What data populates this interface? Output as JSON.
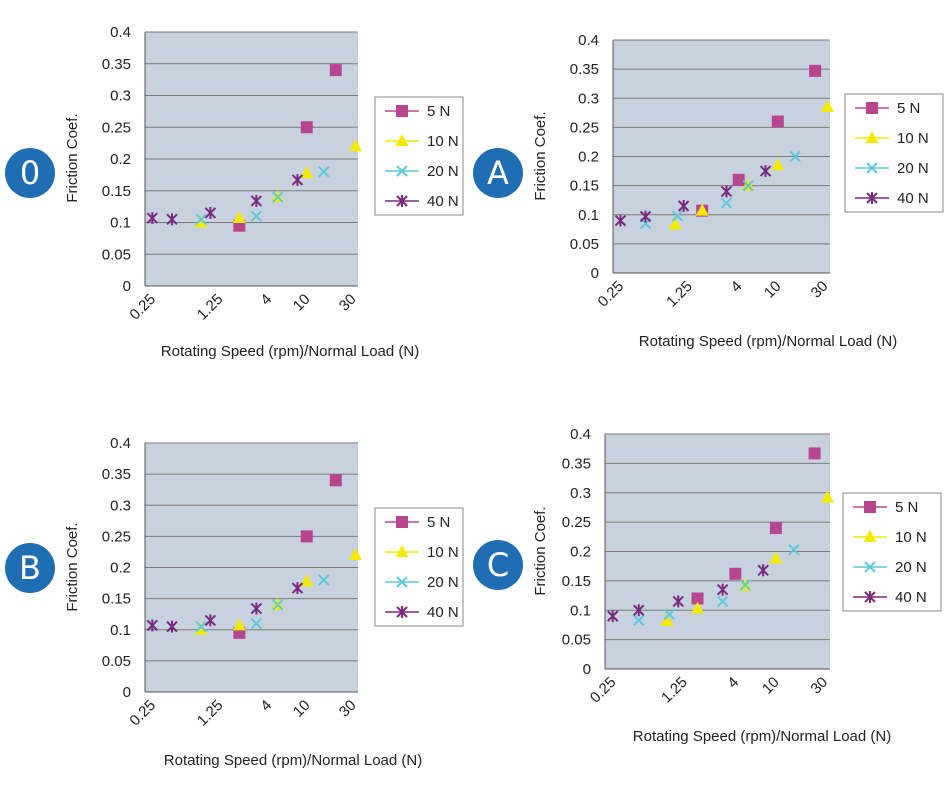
{
  "colors": {
    "plot_bg": "#c8d2de",
    "grid": "#7a7a7a",
    "badge": "#1f6db3",
    "badge_text": "#ffffff",
    "series": [
      "#b8468f",
      "#f2ea00",
      "#5ec8d8",
      "#7a2a7e"
    ]
  },
  "series_names": [
    "5 N",
    "10 N",
    "20 N",
    "40 N"
  ],
  "series_markers": [
    "square",
    "triangle",
    "x",
    "star"
  ],
  "chart_data": [
    {
      "type": "scatter",
      "badge": "0",
      "ylabel": "Friction Coef.",
      "xlabel": "Rotating Speed (rpm)/Normal Load (N)",
      "x_tick_labels": [
        "0.25",
        "1.25",
        "4",
        "10",
        "30"
      ],
      "ylim": [
        0,
        0.4
      ],
      "y_tick_labels": [
        "0",
        "0.05",
        "0.1",
        "0.15",
        "0.2",
        "0.25",
        "0.3",
        "0.35",
        "0.4"
      ],
      "grid": true,
      "legend_position": "right",
      "series": [
        {
          "name": "5 N",
          "x": [
            2,
            10,
            20
          ],
          "y": [
            0.095,
            0.25,
            0.34
          ]
        },
        {
          "name": "10 N",
          "x": [
            0.8,
            2,
            5,
            10,
            32
          ],
          "y": [
            0.1,
            0.107,
            0.14,
            0.178,
            0.22
          ]
        },
        {
          "name": "20 N",
          "x": [
            0.8,
            3,
            5,
            15
          ],
          "y": [
            0.105,
            0.11,
            0.14,
            0.18
          ]
        },
        {
          "name": "40 N",
          "x": [
            0.25,
            0.4,
            1,
            3,
            8
          ],
          "y": [
            0.107,
            0.105,
            0.115,
            0.134,
            0.167
          ]
        }
      ]
    },
    {
      "type": "scatter",
      "badge": "A",
      "ylabel": "Friction Coef.",
      "xlabel": "Rotating Speed (rpm)/Normal Load (N)",
      "x_tick_labels": [
        "0.25",
        "1.25",
        "4",
        "10",
        "30"
      ],
      "ylim": [
        0,
        0.4
      ],
      "y_tick_labels": [
        "0",
        "0.05",
        "0.1",
        "0.15",
        "0.2",
        "0.25",
        "0.3",
        "0.35",
        "0.4"
      ],
      "grid": true,
      "legend_position": "right",
      "series": [
        {
          "name": "5 N",
          "x": [
            1.7,
            4,
            10,
            24
          ],
          "y": [
            0.107,
            0.16,
            0.26,
            0.347
          ]
        },
        {
          "name": "10 N",
          "x": [
            0.9,
            1.7,
            5,
            10,
            32
          ],
          "y": [
            0.083,
            0.107,
            0.15,
            0.185,
            0.285
          ]
        },
        {
          "name": "20 N",
          "x": [
            0.45,
            0.95,
            3,
            5,
            15
          ],
          "y": [
            0.085,
            0.098,
            0.12,
            0.15,
            0.2
          ]
        },
        {
          "name": "40 N",
          "x": [
            0.25,
            0.45,
            1.1,
            3,
            7.5
          ],
          "y": [
            0.09,
            0.097,
            0.115,
            0.14,
            0.175
          ]
        }
      ]
    },
    {
      "type": "scatter",
      "badge": "B",
      "ylabel": "Friction Coef.",
      "xlabel": "Rotating Speed (rpm)/Normal Load (N)",
      "x_tick_labels": [
        "0.25",
        "1.25",
        "4",
        "10",
        "30"
      ],
      "ylim": [
        0,
        0.4
      ],
      "y_tick_labels": [
        "0",
        "0.05",
        "0.1",
        "0.15",
        "0.2",
        "0.25",
        "0.3",
        "0.35",
        "0.4"
      ],
      "grid": true,
      "legend_position": "right",
      "series": [
        {
          "name": "5 N",
          "x": [
            2,
            10,
            20
          ],
          "y": [
            0.095,
            0.25,
            0.34
          ]
        },
        {
          "name": "10 N",
          "x": [
            0.8,
            2,
            5,
            10,
            32
          ],
          "y": [
            0.1,
            0.107,
            0.14,
            0.178,
            0.22
          ]
        },
        {
          "name": "20 N",
          "x": [
            0.8,
            3,
            5,
            15
          ],
          "y": [
            0.105,
            0.11,
            0.14,
            0.18
          ]
        },
        {
          "name": "40 N",
          "x": [
            0.25,
            0.4,
            1,
            3,
            8
          ],
          "y": [
            0.107,
            0.105,
            0.115,
            0.134,
            0.167
          ]
        }
      ]
    },
    {
      "type": "scatter",
      "badge": "C",
      "ylabel": "Friction Coef.",
      "xlabel": "Rotating Speed (rpm)/Normal Load (N)",
      "x_tick_labels": [
        "0.25",
        "1.25",
        "4",
        "10",
        "30"
      ],
      "ylim": [
        0,
        0.4
      ],
      "y_tick_labels": [
        "0",
        "0.05",
        "0.1",
        "0.15",
        "0.2",
        "0.25",
        "0.3",
        "0.35",
        "0.4"
      ],
      "grid": true,
      "legend_position": "right",
      "series": [
        {
          "name": "5 N",
          "x": [
            1.7,
            4,
            10,
            24
          ],
          "y": [
            0.12,
            0.162,
            0.24,
            0.367
          ]
        },
        {
          "name": "10 N",
          "x": [
            0.85,
            1.7,
            5,
            10,
            32
          ],
          "y": [
            0.082,
            0.103,
            0.142,
            0.188,
            0.292
          ]
        },
        {
          "name": "20 N",
          "x": [
            0.45,
            0.9,
            3,
            5,
            15
          ],
          "y": [
            0.083,
            0.093,
            0.115,
            0.143,
            0.203
          ]
        },
        {
          "name": "40 N",
          "x": [
            0.25,
            0.45,
            1.1,
            3,
            7.5
          ],
          "y": [
            0.09,
            0.1,
            0.115,
            0.135,
            0.168
          ]
        }
      ]
    }
  ]
}
